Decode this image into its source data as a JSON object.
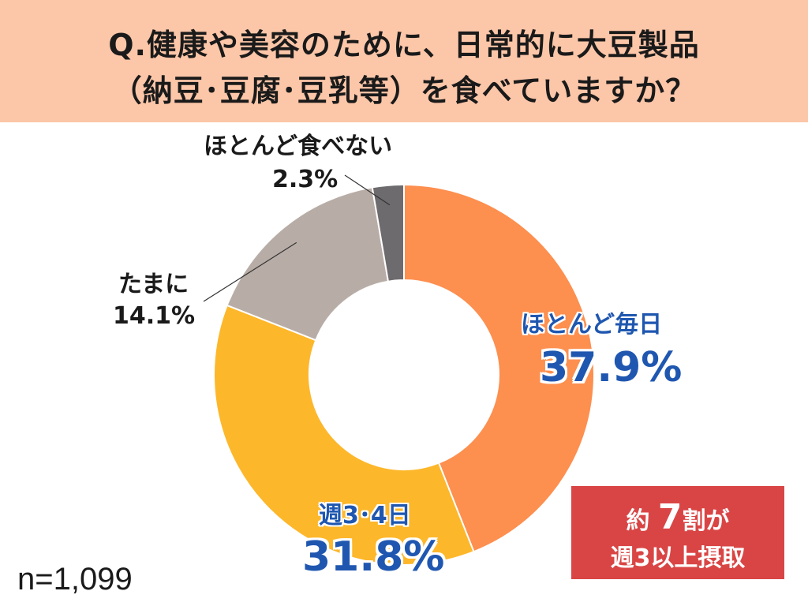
{
  "title": {
    "line1": "Q.健康や美容のために、日常的に大豆製品",
    "line2": "（納豆･豆腐･豆乳等）を食べていますか？"
  },
  "sample_size": "n=1,099",
  "callout": {
    "prefix": "約",
    "number": "7",
    "suffix": "割が",
    "line2": "週3以上摂取"
  },
  "colors": {
    "header_bg": "#fcc6a8",
    "label_blue": "#1f57b0",
    "callout_bg": "#d94545"
  },
  "chart_data": {
    "type": "donut",
    "unit": "%",
    "series": [
      {
        "name": "ほとんど毎日",
        "value": 37.9,
        "label": "37.9%",
        "color": "#fd8f4f"
      },
      {
        "name": "週3･4日",
        "value": 31.8,
        "label": "31.8%",
        "color": "#fdb72a"
      },
      {
        "name": "たまに",
        "value": 14.1,
        "label": "14.1%",
        "color": "#b8ada6"
      },
      {
        "name": "ほとんど食べない",
        "value": 2.3,
        "label": "2.3%",
        "color": "#6e6b6e"
      }
    ]
  }
}
